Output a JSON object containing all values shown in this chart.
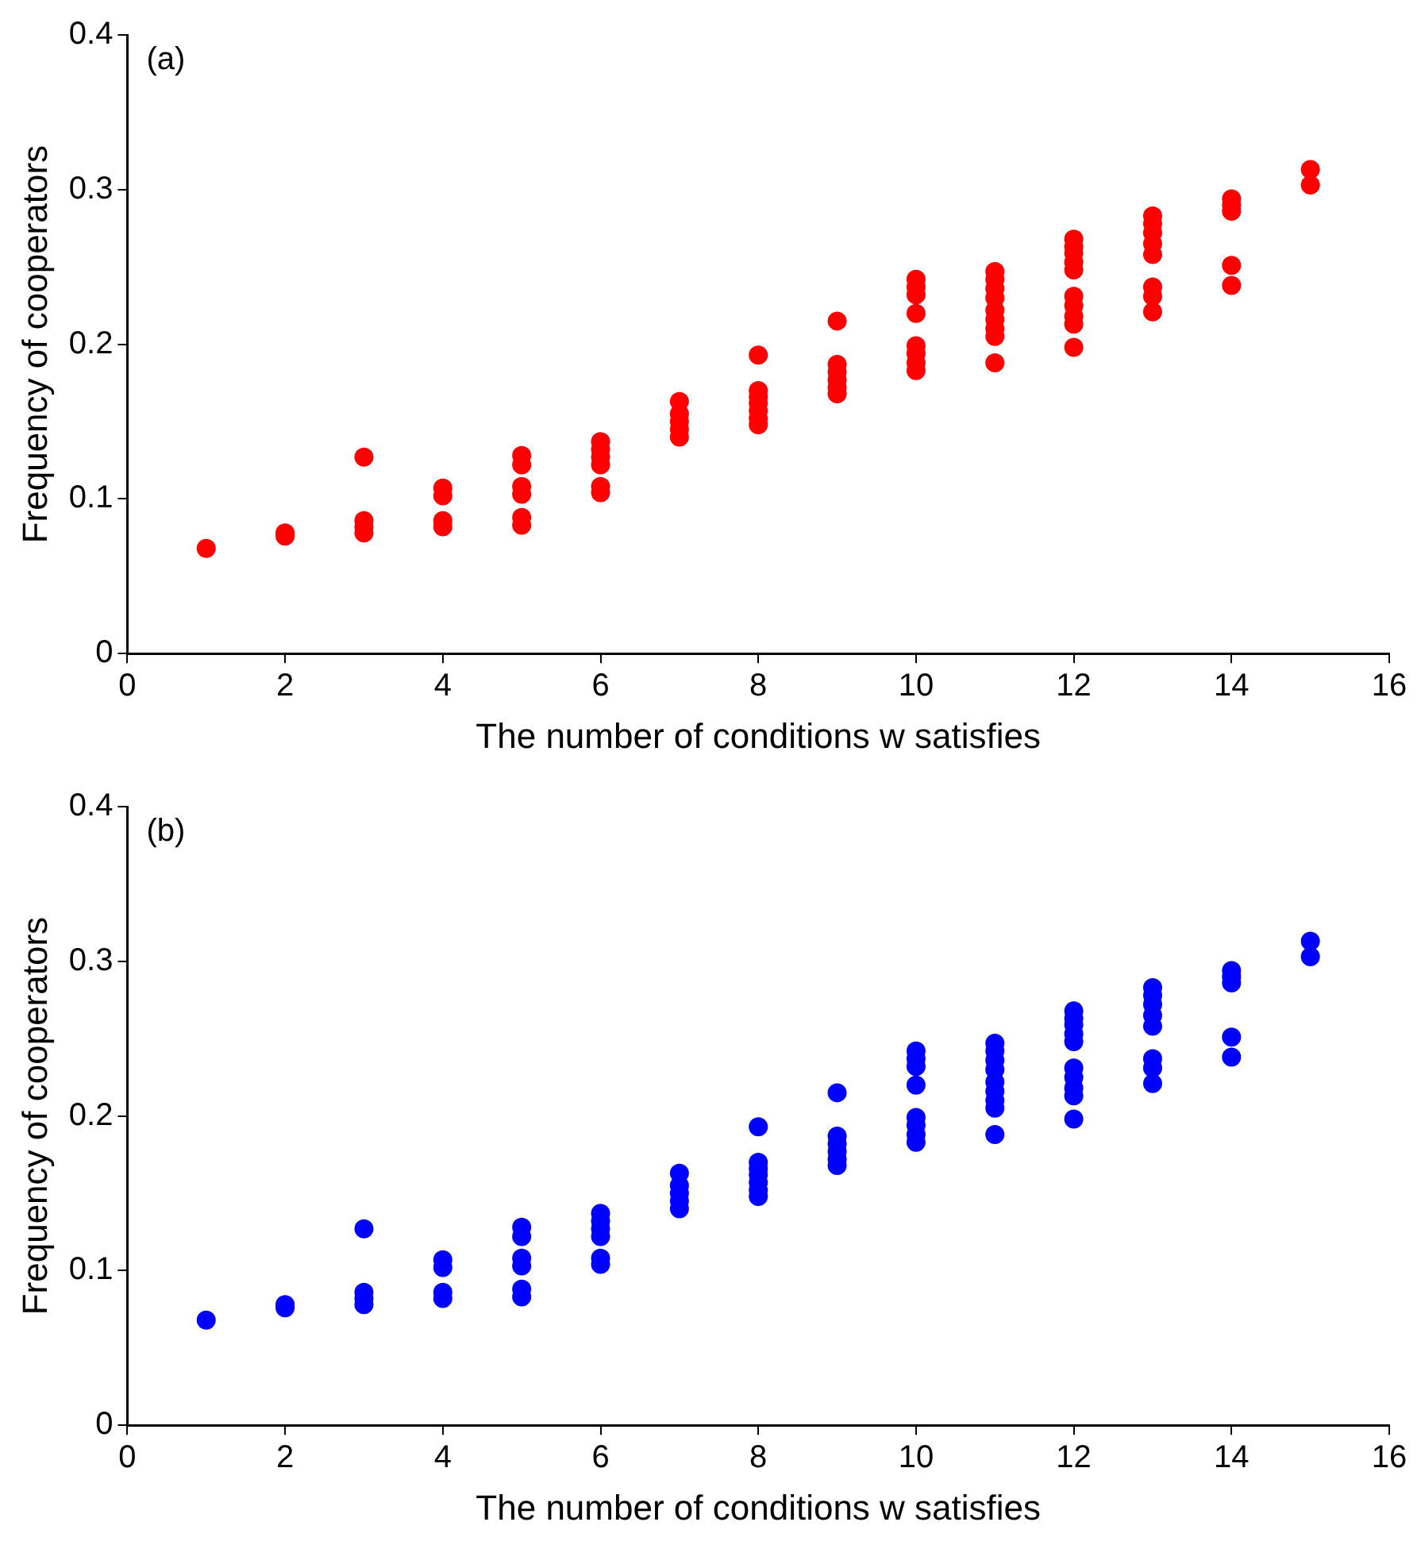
{
  "chart_data": [
    {
      "type": "scatter",
      "xlabel": "The number of conditions w satisfies",
      "ylabel": "Frequency of cooperators",
      "annotations": [
        "(a)"
      ],
      "xlim": [
        0,
        16
      ],
      "xticks": [
        0,
        2,
        4,
        6,
        8,
        10,
        12,
        14,
        16
      ],
      "ylim": [
        0,
        0.4
      ],
      "yticks": [
        0,
        0.1,
        0.2,
        0.3,
        0.4
      ],
      "grid": false,
      "legend": false,
      "marker": "circle",
      "series": [
        {
          "color": "#ff0000",
          "x": [
            1,
            2,
            2,
            3,
            3,
            3,
            3,
            4,
            4,
            4,
            4,
            5,
            5,
            5,
            5,
            5,
            5,
            6,
            6,
            6,
            6,
            6,
            6,
            7,
            7,
            7,
            7,
            7,
            8,
            8,
            8,
            8,
            8,
            8,
            8,
            9,
            9,
            9,
            9,
            9,
            9,
            10,
            10,
            10,
            10,
            10,
            10,
            10,
            10,
            11,
            11,
            11,
            11,
            11,
            11,
            11,
            11,
            11,
            12,
            12,
            12,
            12,
            12,
            12,
            12,
            12,
            12,
            12,
            13,
            13,
            13,
            13,
            13,
            13,
            13,
            13,
            14,
            14,
            14,
            14,
            14,
            15,
            15
          ],
          "values": [
            0.068,
            0.076,
            0.078,
            0.078,
            0.082,
            0.086,
            0.127,
            0.082,
            0.086,
            0.102,
            0.107,
            0.083,
            0.088,
            0.103,
            0.108,
            0.122,
            0.128,
            0.104,
            0.108,
            0.122,
            0.127,
            0.132,
            0.137,
            0.14,
            0.145,
            0.15,
            0.155,
            0.163,
            0.148,
            0.152,
            0.157,
            0.162,
            0.166,
            0.17,
            0.193,
            0.168,
            0.172,
            0.177,
            0.182,
            0.187,
            0.215,
            0.183,
            0.188,
            0.194,
            0.199,
            0.22,
            0.232,
            0.237,
            0.242,
            0.188,
            0.205,
            0.21,
            0.216,
            0.222,
            0.23,
            0.236,
            0.242,
            0.247,
            0.198,
            0.213,
            0.218,
            0.225,
            0.231,
            0.248,
            0.253,
            0.259,
            0.263,
            0.268,
            0.221,
            0.231,
            0.237,
            0.258,
            0.265,
            0.272,
            0.278,
            0.283,
            0.238,
            0.251,
            0.286,
            0.29,
            0.294,
            0.303,
            0.313
          ]
        }
      ]
    },
    {
      "type": "scatter",
      "xlabel": "The number of conditions w satisfies",
      "ylabel": "Frequency of cooperators",
      "annotations": [
        "(b)"
      ],
      "xlim": [
        0,
        16
      ],
      "xticks": [
        0,
        2,
        4,
        6,
        8,
        10,
        12,
        14,
        16
      ],
      "ylim": [
        0,
        0.4
      ],
      "yticks": [
        0,
        0.1,
        0.2,
        0.3,
        0.4
      ],
      "grid": false,
      "legend": false,
      "marker": "circle",
      "series": [
        {
          "color": "#0000ff",
          "x": [
            1,
            2,
            2,
            3,
            3,
            3,
            3,
            4,
            4,
            4,
            4,
            5,
            5,
            5,
            5,
            5,
            5,
            6,
            6,
            6,
            6,
            6,
            6,
            7,
            7,
            7,
            7,
            7,
            8,
            8,
            8,
            8,
            8,
            8,
            8,
            9,
            9,
            9,
            9,
            9,
            9,
            10,
            10,
            10,
            10,
            10,
            10,
            10,
            10,
            11,
            11,
            11,
            11,
            11,
            11,
            11,
            11,
            11,
            12,
            12,
            12,
            12,
            12,
            12,
            12,
            12,
            12,
            12,
            13,
            13,
            13,
            13,
            13,
            13,
            13,
            13,
            14,
            14,
            14,
            14,
            14,
            15,
            15
          ],
          "values": [
            0.068,
            0.076,
            0.078,
            0.078,
            0.082,
            0.086,
            0.127,
            0.082,
            0.086,
            0.102,
            0.107,
            0.083,
            0.088,
            0.103,
            0.108,
            0.122,
            0.128,
            0.104,
            0.108,
            0.122,
            0.127,
            0.132,
            0.137,
            0.14,
            0.145,
            0.15,
            0.155,
            0.163,
            0.148,
            0.152,
            0.157,
            0.162,
            0.166,
            0.17,
            0.193,
            0.168,
            0.172,
            0.177,
            0.182,
            0.187,
            0.215,
            0.183,
            0.188,
            0.194,
            0.199,
            0.22,
            0.232,
            0.237,
            0.242,
            0.188,
            0.205,
            0.21,
            0.216,
            0.222,
            0.23,
            0.236,
            0.242,
            0.247,
            0.198,
            0.213,
            0.218,
            0.225,
            0.231,
            0.248,
            0.253,
            0.259,
            0.263,
            0.268,
            0.221,
            0.231,
            0.237,
            0.258,
            0.265,
            0.272,
            0.278,
            0.283,
            0.238,
            0.251,
            0.286,
            0.29,
            0.294,
            0.303,
            0.313
          ]
        }
      ]
    }
  ]
}
